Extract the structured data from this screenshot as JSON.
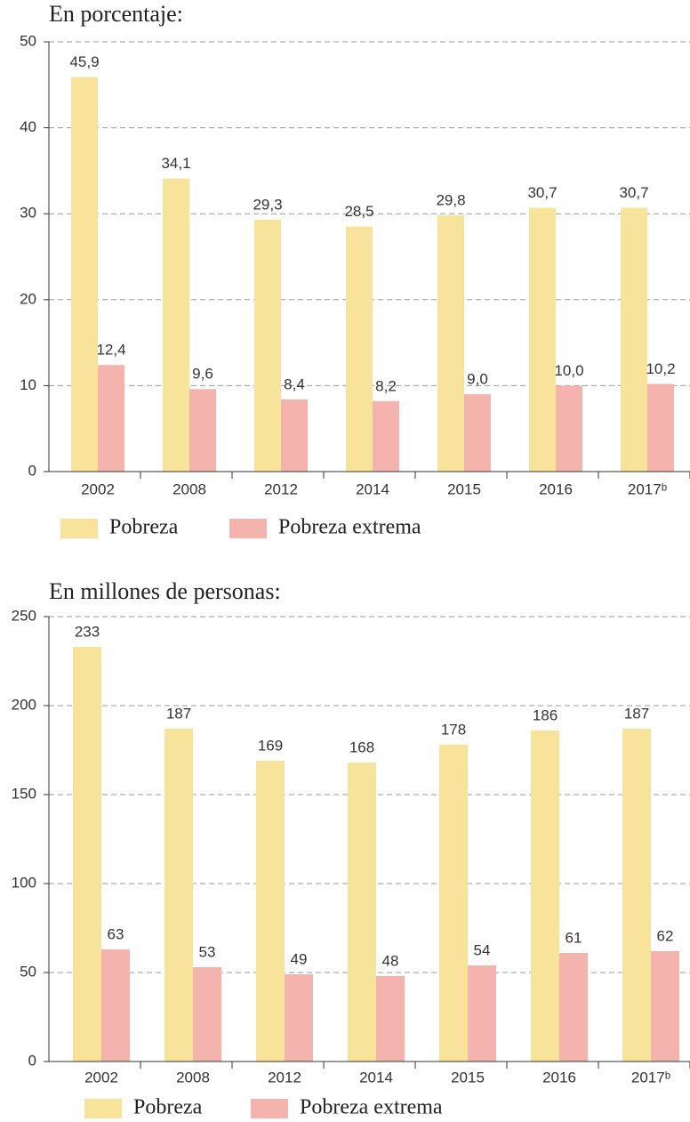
{
  "chart_data": [
    {
      "type": "bar",
      "title": "En porcentaje:",
      "categories": [
        "2002",
        "2008",
        "2012",
        "2014",
        "2015",
        "2016",
        "2017ᵇ"
      ],
      "series": [
        {
          "name": "Pobreza",
          "color": "#f7e49a",
          "values": [
            45.9,
            34.1,
            29.3,
            28.5,
            29.8,
            30.7,
            30.7
          ],
          "value_labels": [
            "45,9",
            "34,1",
            "29,3",
            "28,5",
            "29,8",
            "30,7",
            "30,7"
          ]
        },
        {
          "name": "Pobreza extrema",
          "color": "#f5b3ad",
          "values": [
            12.4,
            9.6,
            8.4,
            8.2,
            9.0,
            10.0,
            10.2
          ],
          "value_labels": [
            "12,4",
            "9,6",
            "8,4",
            "8,2",
            "9,0",
            "10,0",
            "10,2"
          ]
        }
      ],
      "ylim": [
        0,
        50
      ],
      "yticks": [
        0,
        10,
        20,
        30,
        40,
        50
      ],
      "grid": true
    },
    {
      "type": "bar",
      "title": "En millones de personas:",
      "categories": [
        "2002",
        "2008",
        "2012",
        "2014",
        "2015",
        "2016",
        "2017ᵇ"
      ],
      "series": [
        {
          "name": "Pobreza",
          "color": "#f7e49a",
          "values": [
            233,
            187,
            169,
            168,
            178,
            186,
            187
          ]
        },
        {
          "name": "Pobreza extrema",
          "color": "#f5b3ad",
          "values": [
            63,
            53,
            49,
            48,
            54,
            61,
            62
          ]
        }
      ],
      "ylim": [
        0,
        250
      ],
      "yticks": [
        0,
        50,
        100,
        150,
        200,
        250
      ],
      "grid": true
    }
  ]
}
